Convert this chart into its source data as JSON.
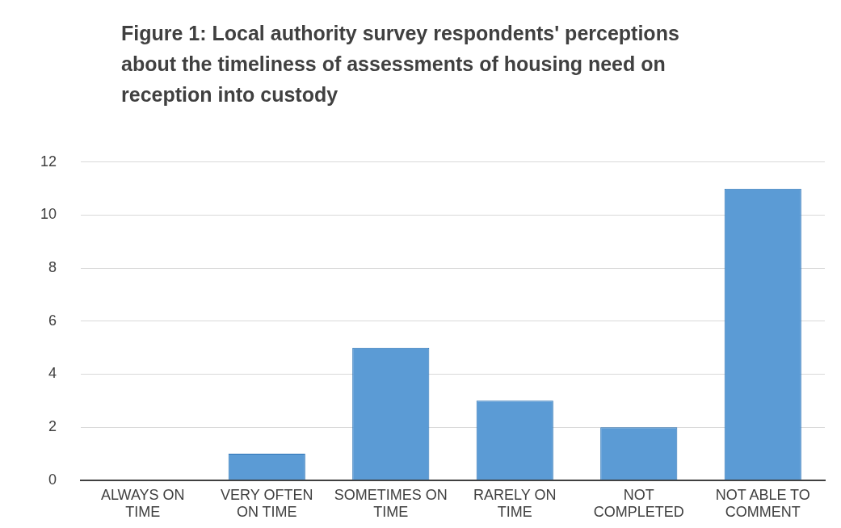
{
  "chart_data": {
    "type": "bar",
    "title": "Figure 1: Local authority survey respondents' perceptions about the timeliness of assessments of housing need on reception into custody",
    "categories": [
      "ALWAYS ON TIME",
      "VERY OFTEN ON TIME",
      "SOMETIMES ON TIME",
      "RARELY ON TIME",
      "NOT COMPLETED",
      "NOT ABLE TO COMMENT"
    ],
    "values": [
      0,
      1,
      5,
      3,
      2,
      11
    ],
    "color": "#5b9bd5",
    "ylim": [
      0,
      12
    ],
    "yticks": [
      0,
      2,
      4,
      6,
      8,
      10,
      12
    ],
    "grid": "y"
  }
}
